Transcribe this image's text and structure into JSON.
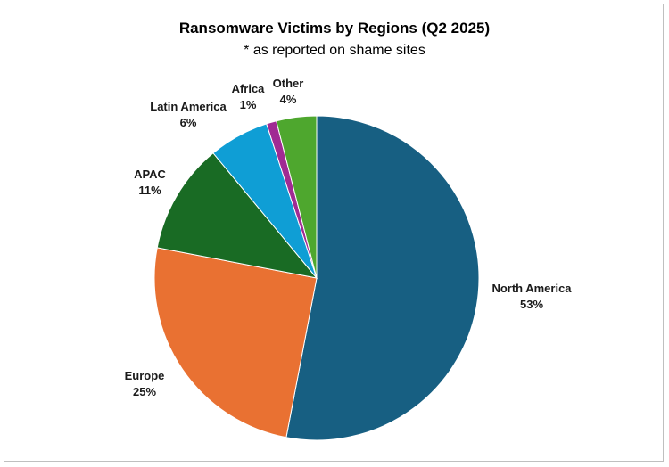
{
  "chart_data": {
    "type": "pie",
    "title": "Ransomware Victims by Regions (Q2 2025)",
    "subtitle": "* as reported on shame sites",
    "start_angle_deg": 0,
    "direction": "clockwise",
    "slices": [
      {
        "label": "North America",
        "value_label": "53%",
        "value": 53,
        "color": "#175f82"
      },
      {
        "label": "Europe",
        "value_label": "25%",
        "value": 25,
        "color": "#e97132"
      },
      {
        "label": "APAC",
        "value_label": "11%",
        "value": 11,
        "color": "#196b24"
      },
      {
        "label": "Latin America",
        "value_label": "6%",
        "value": 6,
        "color": "#0f9ed5"
      },
      {
        "label": "Africa",
        "value_label": "1%",
        "value": 1,
        "color": "#a02b93"
      },
      {
        "label": "Other",
        "value_label": "4%",
        "value": 4,
        "color": "#4ea72e"
      }
    ]
  }
}
